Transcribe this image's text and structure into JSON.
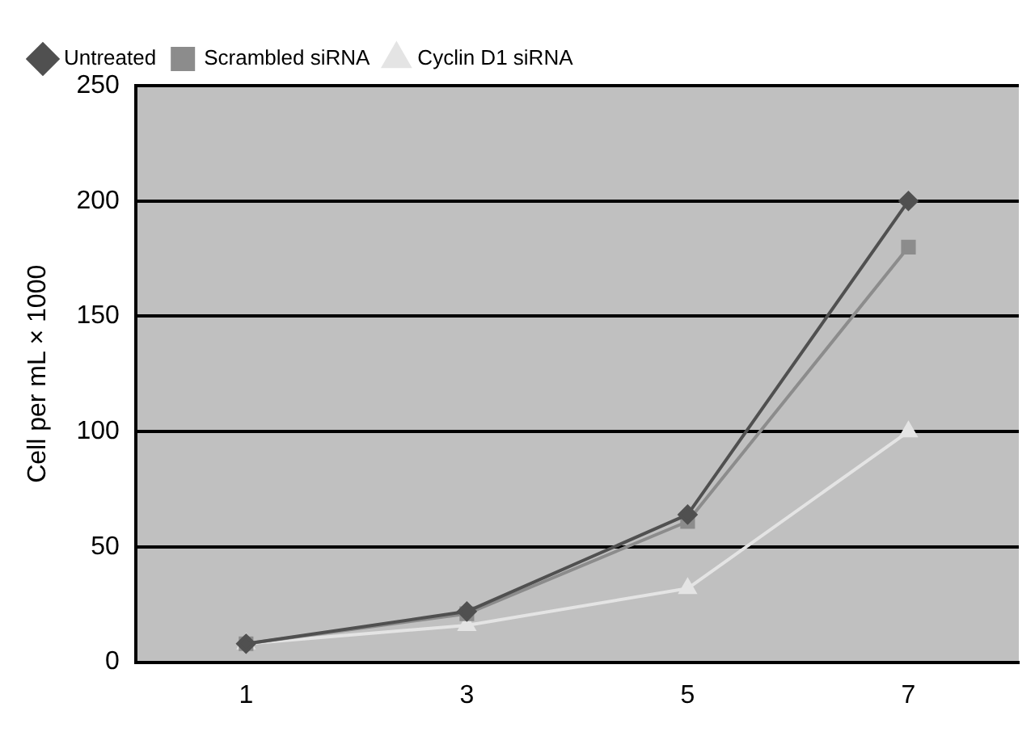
{
  "chart_data": {
    "type": "line",
    "ylabel": "Cell per mL × 1000",
    "categories": [
      "1",
      "3",
      "5",
      "7"
    ],
    "ylim": [
      0,
      250
    ],
    "yticks": [
      0,
      50,
      100,
      150,
      200,
      250
    ],
    "grid": "y",
    "legend": "top left",
    "line_style": "solid",
    "series": [
      {
        "name": "Untreated",
        "color": "#505050",
        "marker": "diamond",
        "values": [
          8,
          22,
          64,
          200
        ]
      },
      {
        "name": "Scrambled siRNA",
        "color": "#8c8c8c",
        "marker": "square",
        "values": [
          8,
          21,
          61,
          180
        ]
      },
      {
        "name": "Cyclin D1 siRNA",
        "color": "#e4e4e4",
        "marker": "triangle",
        "values": [
          8,
          16,
          32,
          100
        ]
      }
    ]
  }
}
